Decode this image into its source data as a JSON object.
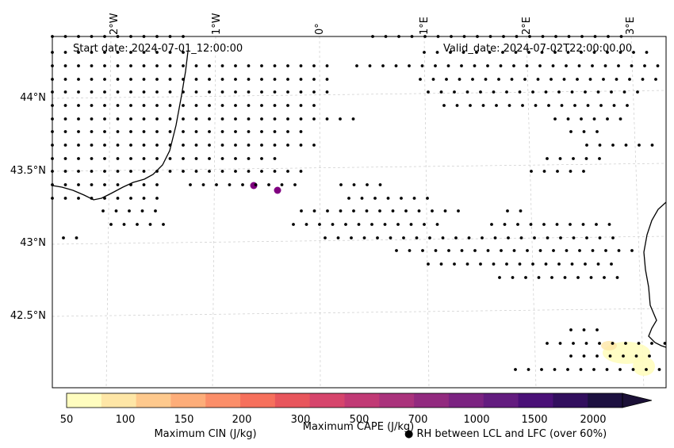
{
  "map": {
    "start_label": "Start date: 2024-07-01_12:00:00",
    "valid_label": "Valid_date: 2024-07-02T22:00:00.00",
    "lon_ticks": [
      "2°W",
      "1°W",
      "0°",
      "1°E",
      "2°E",
      "3°E"
    ],
    "lat_ticks": [
      "44°N",
      "43.5°N",
      "43°N",
      "42.5°N"
    ]
  },
  "colorbar": {
    "ticks": [
      "50",
      "100",
      "150",
      "200",
      "300",
      "500",
      "700",
      "1000",
      "1500",
      "2000"
    ],
    "colors": [
      "#fffdbf",
      "#fee6a6",
      "#fec98d",
      "#fdad79",
      "#fb8e69",
      "#f6705c",
      "#e8565c",
      "#d6456c",
      "#c13a75",
      "#aa337c",
      "#922a7f",
      "#7b2381",
      "#631c7f",
      "#4a1077",
      "#320f5e",
      "#1c1040",
      "#1b1037"
    ],
    "cape_label": "Maximum CAPE (J/kg)",
    "cin_label": "Maximum CIN (J/kg)",
    "cin_color": "#ff0000",
    "rh_label": "● RH between LCL and LFC (over 60%)"
  }
}
